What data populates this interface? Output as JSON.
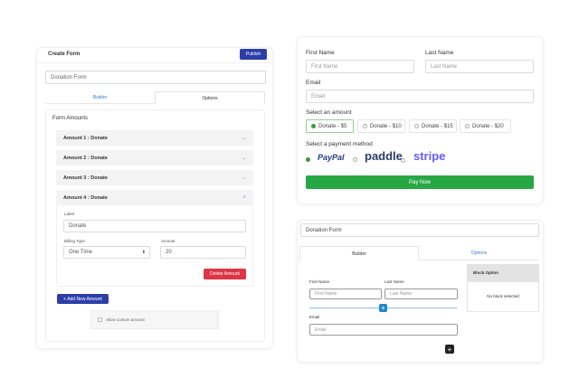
{
  "left": {
    "title": "Create Form",
    "publish": "Publish",
    "form_name": "Donation Form",
    "tabs": [
      "Builder",
      "Options"
    ],
    "section": "Form Amounts",
    "amounts": [
      "Amount 1 : Donate",
      "Amount 2 : Donate",
      "Amount 3 : Donate",
      "Amount 4 : Donate"
    ],
    "label_label": "Label",
    "label_value": "Donate",
    "billing_label": "Billing Type",
    "billing_value": "One Time",
    "amount_label": "Amount",
    "amount_value": "20",
    "delete": "Delete Amount",
    "add": "+ Add New Amount",
    "custom": "Allow custom amount"
  },
  "preview": {
    "first_name": "First Name",
    "first_name_ph": "First Name",
    "last_name": "Last Name",
    "last_name_ph": "Last Name",
    "email": "Email",
    "email_ph": "Email",
    "amount_title": "Select an amount",
    "amount_options": [
      "Donate - $5",
      "Donate - $10",
      "Donate - $15",
      "Donate - $20"
    ],
    "selected_amount": 0,
    "payment_title": "Select a payment method",
    "payment_methods": [
      "PayPal",
      "paddle",
      "stripe"
    ],
    "selected_payment": 0,
    "pay": "Pay Now",
    "accent": "#28a745"
  },
  "builder": {
    "form_name": "Donation Form",
    "tabs": [
      "Builder",
      "Options"
    ],
    "first_name": "First Name",
    "first_name_ph": "First Name",
    "last_name": "Last Name",
    "last_name_ph": "Last Name",
    "email": "Email",
    "email_ph": "Email",
    "block_title": "Block Option",
    "block_empty": "No block selected"
  }
}
